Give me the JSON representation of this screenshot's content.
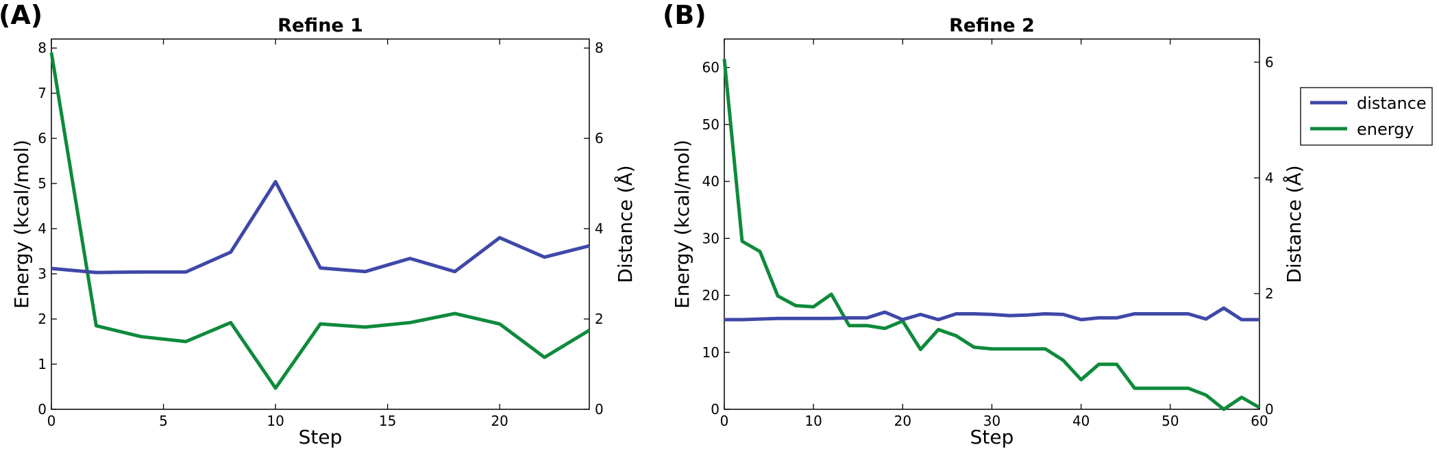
{
  "figure": {
    "panel_labels": [
      "(A)",
      "(B)"
    ],
    "legend": {
      "entries": [
        {
          "label": "distance",
          "color": "#3f48a8"
        },
        {
          "label": "energy",
          "color": "#0e8a3b"
        }
      ],
      "placement": "right, outside plots"
    }
  },
  "chart_data": [
    {
      "type": "line",
      "title": "Refine 1",
      "xlabel": "Step",
      "ylabel": "Energy (kcal/mol)",
      "ylabel_right": "Distance (Å)",
      "xlim": [
        0,
        24
      ],
      "ylim": [
        0,
        8.2
      ],
      "ylim_right": [
        0,
        8.2
      ],
      "xticks": [
        0,
        5,
        10,
        15,
        20
      ],
      "yticks": [
        0,
        1,
        2,
        3,
        4,
        5,
        6,
        7,
        8
      ],
      "yticks_right": [
        0,
        2,
        4,
        6,
        8
      ],
      "grid": false,
      "series": [
        {
          "name": "distance",
          "axis": "right",
          "color": "#3f48a8",
          "x": [
            0,
            2,
            4,
            6,
            8,
            10,
            12,
            14,
            16,
            18,
            20,
            22,
            24
          ],
          "y": [
            3.12,
            3.03,
            3.04,
            3.04,
            3.48,
            5.04,
            3.13,
            3.05,
            3.34,
            3.05,
            3.8,
            3.37,
            3.62
          ]
        },
        {
          "name": "energy",
          "axis": "left",
          "color": "#0e8a3b",
          "x": [
            0,
            2,
            4,
            6,
            8,
            10,
            12,
            14,
            16,
            18,
            20,
            22,
            24
          ],
          "y": [
            7.9,
            1.85,
            1.61,
            1.5,
            1.92,
            0.47,
            1.89,
            1.82,
            1.92,
            2.12,
            1.89,
            1.15,
            1.75
          ]
        }
      ]
    },
    {
      "type": "line",
      "title": "Refine 2",
      "xlabel": "Step",
      "ylabel": "Energy (kcal/mol)",
      "ylabel_right": "Distance (Å)",
      "xlim": [
        0,
        60
      ],
      "ylim": [
        0,
        65
      ],
      "ylim_right": [
        0,
        6.4
      ],
      "xticks": [
        0,
        10,
        20,
        30,
        40,
        50,
        60
      ],
      "yticks": [
        0,
        10,
        20,
        30,
        40,
        50,
        60
      ],
      "yticks_right": [
        0,
        2,
        4,
        6
      ],
      "grid": false,
      "series": [
        {
          "name": "distance",
          "axis": "right",
          "color": "#3f48a8",
          "x": [
            0,
            2,
            4,
            6,
            8,
            10,
            12,
            14,
            16,
            18,
            20,
            22,
            24,
            26,
            28,
            30,
            32,
            34,
            36,
            38,
            40,
            42,
            44,
            46,
            48,
            50,
            52,
            54,
            56,
            58,
            60
          ],
          "y": [
            1.55,
            1.55,
            1.56,
            1.57,
            1.57,
            1.57,
            1.57,
            1.58,
            1.58,
            1.68,
            1.55,
            1.64,
            1.55,
            1.65,
            1.65,
            1.64,
            1.62,
            1.63,
            1.65,
            1.64,
            1.55,
            1.58,
            1.58,
            1.65,
            1.65,
            1.65,
            1.65,
            1.56,
            1.75,
            1.55,
            1.55
          ]
        },
        {
          "name": "energy",
          "axis": "left",
          "color": "#0e8a3b",
          "x": [
            0,
            2,
            4,
            6,
            8,
            10,
            12,
            14,
            16,
            18,
            20,
            22,
            24,
            26,
            28,
            30,
            32,
            34,
            36,
            38,
            40,
            42,
            44,
            46,
            48,
            50,
            52,
            54,
            56,
            58,
            60
          ],
          "y": [
            61.5,
            29.5,
            27.7,
            19.9,
            18.2,
            18.0,
            20.2,
            14.7,
            14.7,
            14.2,
            15.5,
            10.5,
            14.0,
            12.9,
            10.9,
            10.6,
            10.6,
            10.6,
            10.6,
            8.6,
            5.2,
            7.9,
            7.9,
            3.7,
            3.7,
            3.7,
            3.7,
            2.5,
            0.0,
            2.1,
            0.3
          ]
        }
      ]
    }
  ]
}
